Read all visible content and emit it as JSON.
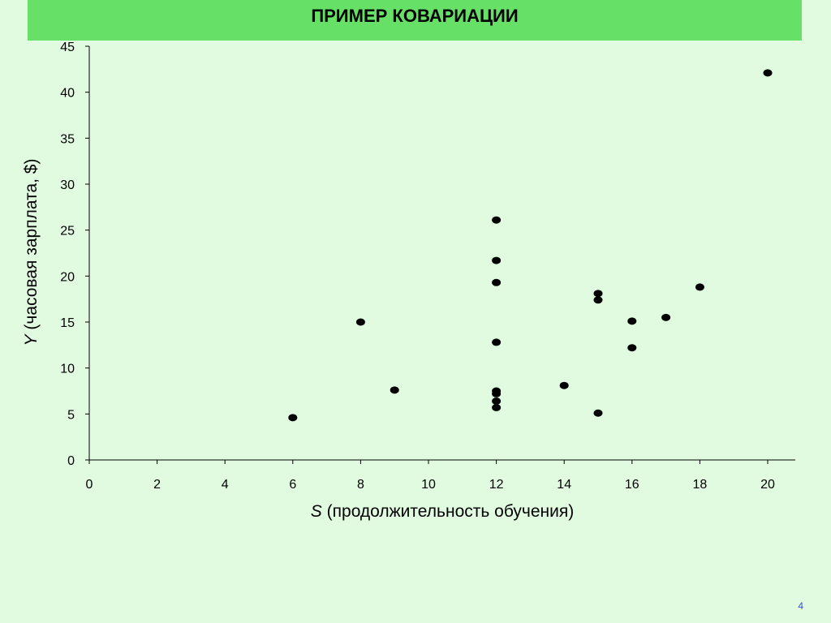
{
  "slide": {
    "title": "ПРИМЕР КОВАРИАЦИИ",
    "page_number": "4",
    "colors": {
      "background": "#e1fbe1",
      "title_bar": "#66e066",
      "points": "#000000",
      "page_number": "#3355cc"
    }
  },
  "chart_data": {
    "type": "scatter",
    "title": "ПРИМЕР КОВАРИАЦИИ",
    "xlabel_var": "S",
    "xlabel_rest": " (продолжительность обучения)",
    "ylabel_var": "Y",
    "ylabel_rest": " (часовая зарплата, $)",
    "xlim": [
      0,
      20
    ],
    "ylim": [
      0,
      45
    ],
    "xticks": [
      0,
      2,
      4,
      6,
      8,
      10,
      12,
      14,
      16,
      18,
      20
    ],
    "yticks": [
      0,
      5,
      10,
      15,
      20,
      25,
      30,
      35,
      40,
      45
    ],
    "grid": false,
    "points": [
      {
        "x": 6,
        "y": 4.6
      },
      {
        "x": 8,
        "y": 15.0
      },
      {
        "x": 9,
        "y": 7.6
      },
      {
        "x": 12,
        "y": 26.1
      },
      {
        "x": 12,
        "y": 21.7
      },
      {
        "x": 12,
        "y": 19.3
      },
      {
        "x": 12,
        "y": 12.8
      },
      {
        "x": 12,
        "y": 7.5
      },
      {
        "x": 12,
        "y": 7.2
      },
      {
        "x": 12,
        "y": 6.4
      },
      {
        "x": 12,
        "y": 5.7
      },
      {
        "x": 14,
        "y": 8.1
      },
      {
        "x": 15,
        "y": 18.1
      },
      {
        "x": 15,
        "y": 17.4
      },
      {
        "x": 15,
        "y": 5.1
      },
      {
        "x": 16,
        "y": 15.1
      },
      {
        "x": 16,
        "y": 12.2
      },
      {
        "x": 17,
        "y": 15.5
      },
      {
        "x": 18,
        "y": 18.8
      },
      {
        "x": 20,
        "y": 42.1
      }
    ]
  }
}
